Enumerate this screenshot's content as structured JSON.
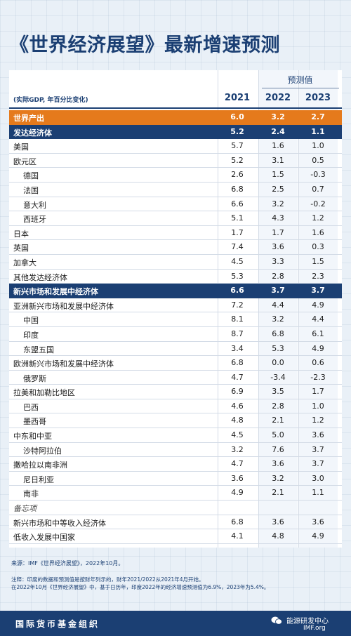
{
  "title": "《世界经济展望》最新增速预测",
  "unit_label": "(实际GDP, 年百分比变化)",
  "forecast_label": "预测值",
  "years": [
    "2021",
    "2022",
    "2023"
  ],
  "chart_data": {
    "type": "table",
    "title": "《世界经济展望》最新增速预测",
    "columns": [
      "2021",
      "2022",
      "2023"
    ],
    "rows": [
      {
        "label": "世界产出",
        "level": 0,
        "style": "world",
        "values": [
          "6.0",
          "3.2",
          "2.7"
        ]
      },
      {
        "label": "发达经济体",
        "level": 0,
        "style": "group",
        "values": [
          "5.2",
          "2.4",
          "1.1"
        ]
      },
      {
        "label": "美国",
        "level": 0,
        "style": "normal",
        "values": [
          "5.7",
          "1.6",
          "1.0"
        ]
      },
      {
        "label": "欧元区",
        "level": 0,
        "style": "normal",
        "values": [
          "5.2",
          "3.1",
          "0.5"
        ]
      },
      {
        "label": "德国",
        "level": 1,
        "style": "normal",
        "values": [
          "2.6",
          "1.5",
          "-0.3"
        ]
      },
      {
        "label": "法国",
        "level": 1,
        "style": "normal",
        "values": [
          "6.8",
          "2.5",
          "0.7"
        ]
      },
      {
        "label": "意大利",
        "level": 1,
        "style": "normal",
        "values": [
          "6.6",
          "3.2",
          "-0.2"
        ]
      },
      {
        "label": "西班牙",
        "level": 1,
        "style": "normal",
        "values": [
          "5.1",
          "4.3",
          "1.2"
        ]
      },
      {
        "label": "日本",
        "level": 0,
        "style": "normal",
        "values": [
          "1.7",
          "1.7",
          "1.6"
        ]
      },
      {
        "label": "英国",
        "level": 0,
        "style": "normal",
        "values": [
          "7.4",
          "3.6",
          "0.3"
        ]
      },
      {
        "label": "加拿大",
        "level": 0,
        "style": "normal",
        "values": [
          "4.5",
          "3.3",
          "1.5"
        ]
      },
      {
        "label": "其他发达经济体",
        "level": 0,
        "style": "normal",
        "values": [
          "5.3",
          "2.8",
          "2.3"
        ]
      },
      {
        "label": "新兴市场和发展中经济体",
        "level": 0,
        "style": "group",
        "values": [
          "6.6",
          "3.7",
          "3.7"
        ]
      },
      {
        "label": "亚洲新兴市场和发展中经济体",
        "level": 0,
        "style": "normal",
        "values": [
          "7.2",
          "4.4",
          "4.9"
        ]
      },
      {
        "label": "中国",
        "level": 1,
        "style": "normal",
        "values": [
          "8.1",
          "3.2",
          "4.4"
        ]
      },
      {
        "label": "印度",
        "level": 1,
        "style": "normal",
        "values": [
          "8.7",
          "6.8",
          "6.1"
        ]
      },
      {
        "label": "东盟五国",
        "level": 1,
        "style": "normal",
        "values": [
          "3.4",
          "5.3",
          "4.9"
        ]
      },
      {
        "label": "欧洲新兴市场和发展中经济体",
        "level": 0,
        "style": "normal",
        "values": [
          "6.8",
          "0.0",
          "0.6"
        ]
      },
      {
        "label": "俄罗斯",
        "level": 1,
        "style": "normal",
        "values": [
          "4.7",
          "-3.4",
          "-2.3"
        ]
      },
      {
        "label": "拉美和加勒比地区",
        "level": 0,
        "style": "normal",
        "values": [
          "6.9",
          "3.5",
          "1.7"
        ]
      },
      {
        "label": "巴西",
        "level": 1,
        "style": "normal",
        "values": [
          "4.6",
          "2.8",
          "1.0"
        ]
      },
      {
        "label": "墨西哥",
        "level": 1,
        "style": "normal",
        "values": [
          "4.8",
          "2.1",
          "1.2"
        ]
      },
      {
        "label": "中东和中亚",
        "level": 0,
        "style": "normal",
        "values": [
          "4.5",
          "5.0",
          "3.6"
        ]
      },
      {
        "label": "沙特阿拉伯",
        "level": 1,
        "style": "normal",
        "values": [
          "3.2",
          "7.6",
          "3.7"
        ]
      },
      {
        "label": "撒哈拉以南非洲",
        "level": 0,
        "style": "normal",
        "values": [
          "4.7",
          "3.6",
          "3.7"
        ]
      },
      {
        "label": "尼日利亚",
        "level": 1,
        "style": "normal",
        "values": [
          "3.6",
          "3.2",
          "3.0"
        ]
      },
      {
        "label": "南非",
        "level": 1,
        "style": "normal",
        "values": [
          "4.9",
          "2.1",
          "1.1"
        ]
      },
      {
        "label": "备忘项",
        "level": 0,
        "style": "memo",
        "values": [
          "",
          "",
          ""
        ]
      },
      {
        "label": "新兴市场和中等收入经济体",
        "level": 0,
        "style": "normal",
        "values": [
          "6.8",
          "3.6",
          "3.6"
        ]
      },
      {
        "label": "低收入发展中国家",
        "level": 0,
        "style": "normal",
        "values": [
          "4.1",
          "4.8",
          "4.9"
        ]
      }
    ]
  },
  "source": "来源：IMF《世界经济展望》，2022年10月。",
  "notes": [
    "注释：印度的数据和预测值是按财年列示的，财年2021/2022从2021年4月开始。",
    "在2022年10月《世界经济展望》中，基于日历年，印度2022年的经济增速预测值为6.9%，2023年为5.4%。"
  ],
  "footer": {
    "org": "国际货币基金组织",
    "watermark": "能源研发中心",
    "imf": "IMF.org"
  },
  "colors": {
    "navy": "#1b3f73",
    "orange": "#e57a1c",
    "background": "#e9f0f7"
  }
}
